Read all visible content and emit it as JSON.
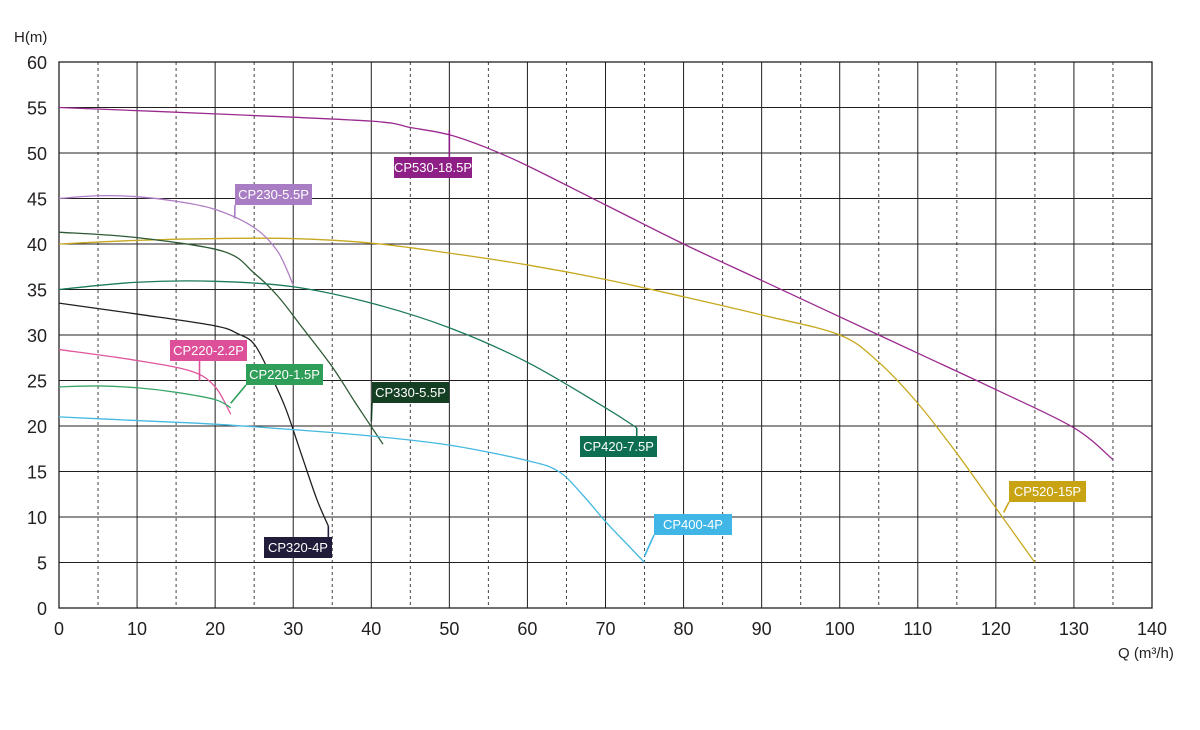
{
  "chart_data": {
    "type": "line",
    "ylabel": "H(m)",
    "xlabel": "Q (m³/h)",
    "xlim": [
      0,
      140
    ],
    "ylim": [
      0,
      60
    ],
    "x_ticks": [
      0,
      10,
      20,
      30,
      40,
      50,
      60,
      70,
      80,
      90,
      100,
      110,
      120,
      130,
      140
    ],
    "y_ticks": [
      0,
      5,
      10,
      15,
      20,
      25,
      30,
      35,
      40,
      45,
      50,
      55,
      60
    ],
    "grid": {
      "major": "solid",
      "minor": "dashed"
    },
    "series": [
      {
        "name": "CP530-18.5P",
        "color": "#9b2a8f",
        "label_color": "#8e1f86",
        "points": [
          [
            0,
            55
          ],
          [
            20,
            54.3
          ],
          [
            40,
            53.5
          ],
          [
            45,
            52.8
          ],
          [
            50,
            52
          ],
          [
            55,
            50.5
          ],
          [
            60,
            48.6
          ],
          [
            70,
            44.3
          ],
          [
            80,
            40
          ],
          [
            90,
            36
          ],
          [
            100,
            32
          ],
          [
            110,
            28
          ],
          [
            120,
            24
          ],
          [
            130,
            19.8
          ],
          [
            135,
            16.3
          ]
        ],
        "label_at": [
          50,
          52.5
        ]
      },
      {
        "name": "CP520-15P",
        "color": "#c7a81e",
        "label_color": "#c8a415",
        "points": [
          [
            0,
            40
          ],
          [
            10,
            40.4
          ],
          [
            20,
            40.6
          ],
          [
            30,
            40.6
          ],
          [
            40,
            40.1
          ],
          [
            50,
            39
          ],
          [
            60,
            37.7
          ],
          [
            70,
            36.1
          ],
          [
            80,
            34.2
          ],
          [
            90,
            32.2
          ],
          [
            100,
            30
          ],
          [
            105,
            27
          ],
          [
            110,
            22.5
          ],
          [
            115,
            17
          ],
          [
            120,
            11
          ],
          [
            125,
            5
          ]
        ],
        "label_at": [
          121,
          10.5
        ]
      },
      {
        "name": "CP230-5.5P",
        "color": "#b07ec5",
        "label_color": "#a97dc4",
        "points": [
          [
            0,
            45
          ],
          [
            5,
            45.3
          ],
          [
            10,
            45.2
          ],
          [
            15,
            44.7
          ],
          [
            20,
            43.8
          ],
          [
            25,
            41.8
          ],
          [
            28,
            39.2
          ],
          [
            30,
            35.5
          ]
        ],
        "label_at": [
          22.5,
          42.8
        ]
      },
      {
        "name": "CP330-5.5P",
        "color": "#2d5a35",
        "label_color": "#153f22",
        "points": [
          [
            0,
            41.3
          ],
          [
            10,
            40.7
          ],
          [
            21,
            39.2
          ],
          [
            25,
            36.8
          ],
          [
            28,
            34.3
          ],
          [
            31,
            31
          ],
          [
            35,
            26.5
          ],
          [
            38,
            22.5
          ],
          [
            41.5,
            18
          ]
        ],
        "label_at": [
          40,
          20.5
        ]
      },
      {
        "name": "CP420-7.5P",
        "color": "#1c7a5e",
        "label_color": "#0e6e52",
        "points": [
          [
            0,
            35
          ],
          [
            10,
            35.8
          ],
          [
            20,
            35.9
          ],
          [
            30,
            35.3
          ],
          [
            40,
            33.5
          ],
          [
            50,
            30.8
          ],
          [
            60,
            27
          ],
          [
            70,
            22
          ],
          [
            74,
            19.8
          ]
        ],
        "label_at": [
          74,
          19.8
        ]
      },
      {
        "name": "CP320-4P",
        "color": "#231f20",
        "label_color": "#201c3a",
        "points": [
          [
            0,
            33.5
          ],
          [
            10,
            32.3
          ],
          [
            20,
            31
          ],
          [
            23,
            30.1
          ],
          [
            25,
            29
          ],
          [
            27,
            25.8
          ],
          [
            29,
            22
          ],
          [
            31,
            17
          ],
          [
            33,
            12
          ],
          [
            34.5,
            9
          ]
        ],
        "label_at": [
          34.5,
          9
        ]
      },
      {
        "name": "CP220-2.2P",
        "color": "#e0559c",
        "label_color": "#de4f9a",
        "points": [
          [
            0,
            28.4
          ],
          [
            10,
            27.2
          ],
          [
            17,
            26
          ],
          [
            20,
            24.3
          ],
          [
            22,
            21.3
          ]
        ],
        "label_at": [
          18,
          25
        ]
      },
      {
        "name": "CP220-1.5P",
        "color": "#3aa66a",
        "label_color": "#2e9e58",
        "points": [
          [
            0,
            24.3
          ],
          [
            5,
            24.4
          ],
          [
            10,
            24.2
          ],
          [
            15,
            23.7
          ],
          [
            20,
            22.9
          ],
          [
            22,
            22
          ]
        ],
        "label_at": [
          22,
          22.5
        ]
      },
      {
        "name": "CP400-4P",
        "color": "#44b9e0",
        "label_color": "#3fb6e6",
        "points": [
          [
            0,
            21
          ],
          [
            10,
            20.6
          ],
          [
            20,
            20.2
          ],
          [
            30,
            19.6
          ],
          [
            40,
            18.9
          ],
          [
            50,
            17.9
          ],
          [
            60,
            16.2
          ],
          [
            64,
            15
          ],
          [
            67,
            12.5
          ],
          [
            70,
            9.5
          ],
          [
            73,
            6.8
          ],
          [
            75,
            5
          ]
        ],
        "label_at": [
          75,
          5.7
        ]
      }
    ]
  }
}
